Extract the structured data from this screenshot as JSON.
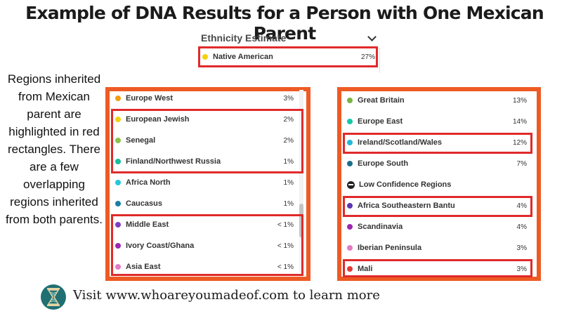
{
  "title": "Example of DNA Results for a Person with One Mexican Parent",
  "estimate": {
    "header": "Ethnicity Estimate",
    "top_row": {
      "name": "Native American",
      "pct": "27%",
      "color": "#f5d00f"
    }
  },
  "side_note": "Regions inherited from Mexican parent are highlighted in red rectangles. There are a few overlapping regions inherited from both parents.",
  "left_list": [
    {
      "name": "Europe West",
      "pct": "3%",
      "color": "#f39c12"
    },
    {
      "name": "European Jewish",
      "pct": "2%",
      "color": "#f5d00f"
    },
    {
      "name": "Senegal",
      "pct": "2%",
      "color": "#8bc34a"
    },
    {
      "name": "Finland/Northwest Russia",
      "pct": "1%",
      "color": "#1abc9c"
    },
    {
      "name": "Africa North",
      "pct": "1%",
      "color": "#26c6da"
    },
    {
      "name": "Caucasus",
      "pct": "1%",
      "color": "#1a7fa0"
    },
    {
      "name": "Middle East",
      "pct": "< 1%",
      "color": "#7e3fbf"
    },
    {
      "name": "Ivory Coast/Ghana",
      "pct": "< 1%",
      "color": "#9c27b0"
    },
    {
      "name": "Asia East",
      "pct": "< 1%",
      "color": "#e57ac4"
    }
  ],
  "right_list": [
    {
      "name": "Great Britain",
      "pct": "13%",
      "color": "#7cb342"
    },
    {
      "name": "Europe East",
      "pct": "14%",
      "color": "#16c9a8"
    },
    {
      "name": "Ireland/Scotland/Wales",
      "pct": "12%",
      "color": "#22b8d8"
    },
    {
      "name": "Europe South",
      "pct": "7%",
      "color": "#1a6f8a"
    },
    {
      "name": "Low Confidence Regions",
      "pct": "",
      "color": "#222222"
    },
    {
      "name": "Africa Southeastern Bantu",
      "pct": "4%",
      "color": "#5e35b1"
    },
    {
      "name": "Scandinavia",
      "pct": "4%",
      "color": "#9c27b0"
    },
    {
      "name": "Iberian Peninsula",
      "pct": "3%",
      "color": "#e57ac4"
    },
    {
      "name": "Mali",
      "pct": "3%",
      "color": "#e53935"
    }
  ],
  "footer": {
    "text": "Visit www.whoareyoumadeof.com to learn more",
    "logo_icon": "dna-hourglass-icon"
  },
  "colors": {
    "highlight": "#e02a2a",
    "frame": "#ee5a24"
  }
}
